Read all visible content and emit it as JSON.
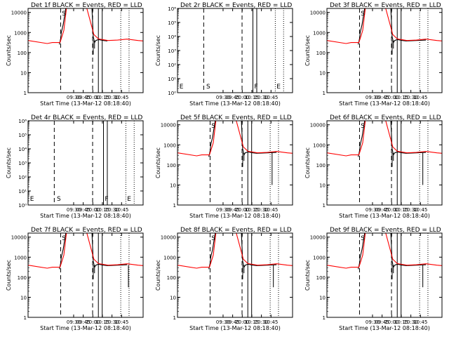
{
  "chart_data": {
    "type": "line",
    "layout": "3x3 grid",
    "x_ticks": [
      "09:30",
      "09:45",
      "10:00",
      "10:15",
      "10:30",
      "10:45"
    ],
    "xlabel": "Start Time (13-Mar-12 08:18:40)",
    "xlim_minutes": [
      0,
      180
    ],
    "x_tick_minutes": [
      71.3,
      86.3,
      101.3,
      116.3,
      131.3,
      146.3
    ],
    "ylabel": "Counts/sec",
    "series_colors": {
      "events": "#000000",
      "lld": "#ff0000"
    },
    "panels": [
      {
        "title": "Det 1f BLACK = Events, RED = LLD",
        "y_ticks": [
          "1",
          "10",
          "100",
          "1000",
          "10000"
        ],
        "ylim_log10": [
          0,
          4.2
        ],
        "has_data": true,
        "lld": [
          [
            0,
            2.6
          ],
          [
            30,
            2.45
          ],
          [
            38,
            2.5
          ],
          [
            50,
            2.5
          ],
          [
            56,
            3.1
          ],
          [
            60,
            4.2
          ],
          [
            92,
            4.2
          ],
          [
            103,
            2.9
          ],
          [
            110,
            2.68
          ],
          [
            125,
            2.6
          ],
          [
            140,
            2.62
          ],
          [
            155,
            2.67
          ],
          [
            172,
            2.6
          ],
          [
            180,
            2.58
          ]
        ],
        "events": [
          [
            49,
            2.4
          ],
          [
            50,
            2.55
          ],
          [
            51,
            2.7
          ],
          [
            52,
            3.0
          ],
          [
            55,
            3.4
          ],
          [
            57,
            3.8
          ],
          [
            59,
            4.2
          ],
          [
            100,
            4.2
          ],
          [
            102,
            2.8
          ],
          [
            104,
            2.5
          ],
          [
            106,
            2.6
          ],
          [
            110,
            2.65
          ],
          [
            118,
            2.6
          ],
          [
            124,
            2.58
          ]
        ],
        "event_spikes": [
          [
            102,
            1.9
          ],
          [
            104,
            2.2
          ]
        ],
        "vlines_dashed": [
          51,
          101
        ],
        "vlines_solid": [
          110,
          116
        ],
        "vlines_dotted": [
          145,
          158
        ],
        "region_labels": [
          {
            "text": "S",
            "x": 53
          }
        ]
      },
      {
        "title": "Det 2r BLACK = Events, RED = LLD",
        "y_ticks": [
          "10⁰",
          "10¹",
          "10²",
          "10³",
          "10⁴",
          "10⁵",
          "10⁶"
        ],
        "ylim_log10": [
          0,
          6
        ],
        "has_data": false,
        "vlines_dashed": [
          41,
          101
        ],
        "vlines_solid": [
          118,
          124
        ],
        "vlines_dotted": [
          153,
          166
        ],
        "region_labels": [
          {
            "text": "E",
            "x": 3
          },
          {
            "text": "S",
            "x": 45
          },
          {
            "text": "F",
            "x": 120
          },
          {
            "text": "E",
            "x": 155
          }
        ]
      },
      {
        "title": "Det 3f BLACK = Events, RED = LLD",
        "y_ticks": [
          "1",
          "10",
          "100",
          "1000",
          "10000"
        ],
        "ylim_log10": [
          0,
          4.2
        ],
        "has_data": true,
        "lld": [
          [
            0,
            2.6
          ],
          [
            30,
            2.45
          ],
          [
            38,
            2.5
          ],
          [
            50,
            2.5
          ],
          [
            56,
            3.1
          ],
          [
            60,
            4.2
          ],
          [
            92,
            4.2
          ],
          [
            103,
            2.9
          ],
          [
            110,
            2.68
          ],
          [
            125,
            2.6
          ],
          [
            140,
            2.62
          ],
          [
            155,
            2.67
          ],
          [
            172,
            2.6
          ],
          [
            180,
            2.58
          ]
        ],
        "events": [
          [
            49,
            2.4
          ],
          [
            50,
            2.55
          ],
          [
            51,
            2.7
          ],
          [
            52,
            3.0
          ],
          [
            55,
            3.4
          ],
          [
            57,
            3.8
          ],
          [
            59,
            4.2
          ],
          [
            100,
            4.2
          ],
          [
            102,
            2.8
          ],
          [
            104,
            2.5
          ],
          [
            106,
            2.6
          ],
          [
            110,
            2.65
          ],
          [
            118,
            2.6
          ],
          [
            124,
            2.58
          ],
          [
            140,
            2.6
          ],
          [
            155,
            2.62
          ]
        ],
        "event_spikes": [
          [
            102,
            1.9
          ],
          [
            104,
            2.2
          ]
        ],
        "vlines_dashed": [
          51,
          101
        ],
        "vlines_solid": [
          110,
          116
        ],
        "vlines_dotted": [
          145,
          158
        ],
        "region_labels": [
          {
            "text": "S",
            "x": 53
          }
        ]
      },
      {
        "title": "Det 4r BLACK = Events, RED = LLD",
        "y_ticks": [
          "10⁰",
          "10¹",
          "10²",
          "10³",
          "10⁴",
          "10⁵",
          "10⁶"
        ],
        "ylim_log10": [
          0,
          6
        ],
        "has_data": false,
        "vlines_dashed": [
          41,
          101
        ],
        "vlines_solid": [
          118,
          124
        ],
        "vlines_dotted": [
          153,
          166
        ],
        "region_labels": [
          {
            "text": "E",
            "x": 3
          },
          {
            "text": "S",
            "x": 45
          },
          {
            "text": "F",
            "x": 120
          },
          {
            "text": "E",
            "x": 155
          }
        ]
      },
      {
        "title": "Det 5f BLACK = Events, RED = LLD",
        "y_ticks": [
          "1",
          "10",
          "100",
          "1000",
          "10000"
        ],
        "ylim_log10": [
          0,
          4.2
        ],
        "has_data": true,
        "lld": [
          [
            0,
            2.6
          ],
          [
            30,
            2.45
          ],
          [
            38,
            2.5
          ],
          [
            50,
            2.5
          ],
          [
            56,
            3.1
          ],
          [
            60,
            4.2
          ],
          [
            92,
            4.2
          ],
          [
            103,
            2.9
          ],
          [
            110,
            2.68
          ],
          [
            125,
            2.6
          ],
          [
            140,
            2.62
          ],
          [
            155,
            2.67
          ],
          [
            172,
            2.6
          ],
          [
            180,
            2.58
          ]
        ],
        "events": [
          [
            49,
            2.4
          ],
          [
            50,
            2.55
          ],
          [
            51,
            2.7
          ],
          [
            52,
            3.0
          ],
          [
            55,
            3.4
          ],
          [
            57,
            3.8
          ],
          [
            59,
            4.2
          ],
          [
            100,
            4.2
          ],
          [
            102,
            2.8
          ],
          [
            104,
            2.5
          ],
          [
            106,
            2.6
          ],
          [
            110,
            2.65
          ],
          [
            118,
            2.6
          ],
          [
            124,
            2.58
          ],
          [
            140,
            2.6
          ],
          [
            155,
            2.62
          ]
        ],
        "event_spikes": [
          [
            102,
            1.9
          ],
          [
            104,
            2.2
          ],
          [
            148,
            1.0
          ]
        ],
        "vlines_dashed": [
          51,
          101
        ],
        "vlines_solid": [
          110,
          116
        ],
        "vlines_dotted": [
          145,
          158
        ],
        "region_labels": [
          {
            "text": "S",
            "x": 53
          }
        ]
      },
      {
        "title": "Det 6f BLACK = Events, RED = LLD",
        "y_ticks": [
          "1",
          "10",
          "100",
          "1000",
          "10000"
        ],
        "ylim_log10": [
          0,
          4.2
        ],
        "has_data": true,
        "lld": [
          [
            0,
            2.6
          ],
          [
            30,
            2.45
          ],
          [
            38,
            2.5
          ],
          [
            50,
            2.5
          ],
          [
            56,
            3.1
          ],
          [
            60,
            4.2
          ],
          [
            92,
            4.2
          ],
          [
            103,
            2.9
          ],
          [
            110,
            2.68
          ],
          [
            125,
            2.6
          ],
          [
            140,
            2.62
          ],
          [
            155,
            2.67
          ],
          [
            172,
            2.6
          ],
          [
            180,
            2.58
          ]
        ],
        "events": [
          [
            49,
            2.4
          ],
          [
            50,
            2.55
          ],
          [
            51,
            2.7
          ],
          [
            52,
            3.0
          ],
          [
            55,
            3.4
          ],
          [
            57,
            3.8
          ],
          [
            59,
            4.2
          ],
          [
            100,
            4.2
          ],
          [
            102,
            2.8
          ],
          [
            104,
            2.5
          ],
          [
            106,
            2.6
          ],
          [
            110,
            2.65
          ],
          [
            118,
            2.6
          ],
          [
            124,
            2.58
          ],
          [
            140,
            2.6
          ],
          [
            155,
            2.62
          ]
        ],
        "event_spikes": [
          [
            102,
            1.9
          ],
          [
            104,
            2.2
          ],
          [
            150,
            1.0
          ]
        ],
        "vlines_dashed": [
          51,
          101
        ],
        "vlines_solid": [
          110,
          116
        ],
        "vlines_dotted": [
          145,
          158
        ],
        "region_labels": [
          {
            "text": "S",
            "x": 53
          }
        ]
      },
      {
        "title": "Det 7f BLACK = Events, RED = LLD",
        "y_ticks": [
          "1",
          "10",
          "100",
          "1000",
          "10000"
        ],
        "ylim_log10": [
          0,
          4.2
        ],
        "has_data": true,
        "lld": [
          [
            0,
            2.6
          ],
          [
            30,
            2.45
          ],
          [
            38,
            2.5
          ],
          [
            50,
            2.5
          ],
          [
            56,
            3.1
          ],
          [
            60,
            4.2
          ],
          [
            92,
            4.2
          ],
          [
            103,
            2.9
          ],
          [
            110,
            2.68
          ],
          [
            125,
            2.6
          ],
          [
            140,
            2.62
          ],
          [
            155,
            2.67
          ],
          [
            172,
            2.6
          ],
          [
            180,
            2.58
          ]
        ],
        "events": [
          [
            49,
            2.4
          ],
          [
            50,
            2.55
          ],
          [
            51,
            2.7
          ],
          [
            52,
            3.0
          ],
          [
            55,
            3.4
          ],
          [
            57,
            3.8
          ],
          [
            59,
            4.2
          ],
          [
            100,
            4.2
          ],
          [
            102,
            2.8
          ],
          [
            104,
            2.5
          ],
          [
            106,
            2.6
          ],
          [
            110,
            2.65
          ],
          [
            118,
            2.6
          ],
          [
            124,
            2.58
          ],
          [
            140,
            2.6
          ],
          [
            155,
            2.62
          ]
        ],
        "event_spikes": [
          [
            102,
            1.9
          ],
          [
            104,
            2.2
          ],
          [
            157,
            1.5
          ]
        ],
        "vlines_dashed": [
          51,
          101
        ],
        "vlines_solid": [
          110,
          116
        ],
        "vlines_dotted": [
          145,
          158
        ],
        "region_labels": [
          {
            "text": "S",
            "x": 53
          }
        ]
      },
      {
        "title": "Det 8f BLACK = Events, RED = LLD",
        "y_ticks": [
          "1",
          "10",
          "100",
          "1000",
          "10000"
        ],
        "ylim_log10": [
          0,
          4.2
        ],
        "has_data": true,
        "lld": [
          [
            0,
            2.6
          ],
          [
            30,
            2.45
          ],
          [
            38,
            2.5
          ],
          [
            50,
            2.5
          ],
          [
            56,
            3.1
          ],
          [
            60,
            4.2
          ],
          [
            92,
            4.2
          ],
          [
            103,
            2.9
          ],
          [
            110,
            2.68
          ],
          [
            125,
            2.6
          ],
          [
            140,
            2.62
          ],
          [
            155,
            2.67
          ],
          [
            172,
            2.6
          ],
          [
            180,
            2.58
          ]
        ],
        "events": [
          [
            49,
            2.4
          ],
          [
            50,
            2.55
          ],
          [
            51,
            2.7
          ],
          [
            52,
            3.0
          ],
          [
            55,
            3.4
          ],
          [
            57,
            3.8
          ],
          [
            59,
            4.2
          ],
          [
            100,
            4.2
          ],
          [
            102,
            2.8
          ],
          [
            104,
            2.5
          ],
          [
            106,
            2.6
          ],
          [
            110,
            2.65
          ],
          [
            118,
            2.6
          ],
          [
            124,
            2.58
          ],
          [
            140,
            2.6
          ],
          [
            155,
            2.62
          ]
        ],
        "event_spikes": [
          [
            102,
            1.9
          ],
          [
            104,
            2.2
          ],
          [
            150,
            1.5
          ]
        ],
        "vlines_dashed": [
          51,
          101
        ],
        "vlines_solid": [
          110,
          116
        ],
        "vlines_dotted": [
          145,
          158
        ],
        "region_labels": [
          {
            "text": "S",
            "x": 53
          }
        ]
      },
      {
        "title": "Det 9f BLACK = Events, RED = LLD",
        "y_ticks": [
          "1",
          "10",
          "100",
          "1000",
          "10000"
        ],
        "ylim_log10": [
          0,
          4.2
        ],
        "has_data": true,
        "lld": [
          [
            0,
            2.6
          ],
          [
            30,
            2.45
          ],
          [
            38,
            2.5
          ],
          [
            50,
            2.5
          ],
          [
            56,
            3.1
          ],
          [
            60,
            4.2
          ],
          [
            92,
            4.2
          ],
          [
            103,
            2.9
          ],
          [
            110,
            2.68
          ],
          [
            125,
            2.6
          ],
          [
            140,
            2.62
          ],
          [
            155,
            2.67
          ],
          [
            172,
            2.6
          ],
          [
            180,
            2.58
          ]
        ],
        "events": [
          [
            49,
            2.4
          ],
          [
            50,
            2.55
          ],
          [
            51,
            2.7
          ],
          [
            52,
            3.0
          ],
          [
            55,
            3.4
          ],
          [
            57,
            3.8
          ],
          [
            59,
            4.2
          ],
          [
            100,
            4.2
          ],
          [
            102,
            2.8
          ],
          [
            104,
            2.5
          ],
          [
            106,
            2.6
          ],
          [
            110,
            2.65
          ],
          [
            118,
            2.6
          ],
          [
            124,
            2.58
          ],
          [
            140,
            2.6
          ],
          [
            155,
            2.62
          ]
        ],
        "event_spikes": [
          [
            102,
            1.9
          ],
          [
            104,
            2.2
          ],
          [
            150,
            1.5
          ]
        ],
        "vlines_dashed": [
          51,
          101
        ],
        "vlines_solid": [
          110,
          116
        ],
        "vlines_dotted": [
          145,
          158
        ],
        "region_labels": [
          {
            "text": "S",
            "x": 53
          }
        ]
      }
    ]
  }
}
